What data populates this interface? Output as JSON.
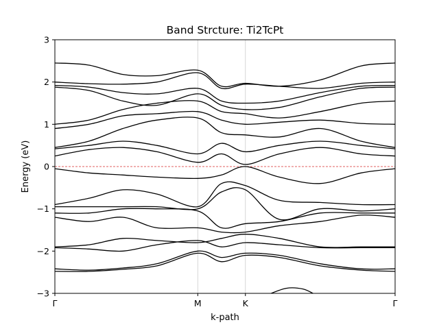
{
  "chart_data": {
    "type": "line",
    "title": "Band Strcture: Ti2TcPt",
    "xlabel": "k-path",
    "ylabel": "Energy (eV)",
    "ylim": [
      -3,
      3
    ],
    "yticks": [
      -3,
      -2,
      -1,
      0,
      1,
      2,
      3
    ],
    "kpoints": [
      {
        "label": "Γ",
        "x": 0.0
      },
      {
        "label": "M",
        "x": 0.42
      },
      {
        "label": "K",
        "x": 0.56
      },
      {
        "label": "Γ",
        "x": 1.0
      }
    ],
    "fermi_level": 0,
    "colors": {
      "bands": "#000000",
      "fermi": "#d62728",
      "kline": "#cccccc"
    },
    "bands": [
      {
        "x": [
          0,
          0.1,
          0.2,
          0.3,
          0.42,
          0.49,
          0.56,
          0.66,
          0.78,
          0.9,
          1.0
        ],
        "y": [
          2.45,
          2.4,
          2.18,
          2.15,
          2.28,
          1.9,
          1.97,
          1.9,
          2.05,
          2.38,
          2.45
        ]
      },
      {
        "x": [
          0,
          0.1,
          0.2,
          0.3,
          0.42,
          0.49,
          0.56,
          0.66,
          0.78,
          0.9,
          1.0
        ],
        "y": [
          2.0,
          1.96,
          1.95,
          2.0,
          2.22,
          1.85,
          1.95,
          1.9,
          1.85,
          1.97,
          2.0
        ]
      },
      {
        "x": [
          0,
          0.1,
          0.2,
          0.3,
          0.42,
          0.49,
          0.56,
          0.66,
          0.78,
          0.9,
          1.0
        ],
        "y": [
          1.92,
          1.88,
          1.75,
          1.72,
          1.85,
          1.55,
          1.5,
          1.55,
          1.75,
          1.9,
          1.92
        ]
      },
      {
        "x": [
          0,
          0.1,
          0.2,
          0.3,
          0.42,
          0.49,
          0.56,
          0.66,
          0.78,
          0.9,
          1.0
        ],
        "y": [
          1.88,
          1.8,
          1.55,
          1.45,
          1.72,
          1.45,
          1.35,
          1.4,
          1.65,
          1.85,
          1.88
        ]
      },
      {
        "x": [
          0,
          0.1,
          0.2,
          0.3,
          0.42,
          0.49,
          0.56,
          0.66,
          0.78,
          0.9,
          1.0
        ],
        "y": [
          1.0,
          1.1,
          1.35,
          1.5,
          1.55,
          1.3,
          1.25,
          1.15,
          1.3,
          1.5,
          1.55
        ]
      },
      {
        "x": [
          0,
          0.1,
          0.2,
          0.3,
          0.42,
          0.49,
          0.56,
          0.66,
          0.78,
          0.9,
          1.0
        ],
        "y": [
          0.9,
          1.0,
          1.2,
          1.25,
          1.3,
          1.1,
          1.0,
          1.05,
          1.1,
          1.02,
          1.0
        ]
      },
      {
        "x": [
          0,
          0.1,
          0.2,
          0.3,
          0.42,
          0.49,
          0.56,
          0.66,
          0.78,
          0.9,
          1.0
        ],
        "y": [
          0.45,
          0.6,
          0.9,
          1.1,
          1.15,
          0.8,
          0.75,
          0.7,
          0.9,
          0.6,
          0.45
        ]
      },
      {
        "x": [
          0,
          0.1,
          0.2,
          0.3,
          0.42,
          0.49,
          0.56,
          0.66,
          0.78,
          0.9,
          1.0
        ],
        "y": [
          0.42,
          0.5,
          0.6,
          0.5,
          0.3,
          0.55,
          0.35,
          0.5,
          0.6,
          0.5,
          0.42
        ]
      },
      {
        "x": [
          0,
          0.1,
          0.2,
          0.3,
          0.42,
          0.49,
          0.56,
          0.66,
          0.78,
          0.9,
          1.0
        ],
        "y": [
          0.25,
          0.4,
          0.45,
          0.35,
          0.1,
          0.3,
          0.05,
          0.3,
          0.45,
          0.3,
          0.25
        ]
      },
      {
        "x": [
          0,
          0.1,
          0.2,
          0.3,
          0.42,
          0.49,
          0.56,
          0.66,
          0.78,
          0.9,
          1.0
        ],
        "y": [
          -0.05,
          -0.15,
          -0.2,
          -0.25,
          -0.28,
          -0.2,
          0.0,
          -0.25,
          -0.4,
          -0.15,
          -0.05
        ]
      },
      {
        "x": [
          0,
          0.1,
          0.2,
          0.3,
          0.42,
          0.49,
          0.56,
          0.66,
          0.78,
          0.9,
          1.0
        ],
        "y": [
          -0.9,
          -0.75,
          -0.55,
          -0.65,
          -0.95,
          -0.4,
          -0.45,
          -0.8,
          -0.85,
          -0.9,
          -0.9
        ]
      },
      {
        "x": [
          0,
          0.1,
          0.2,
          0.3,
          0.42,
          0.49,
          0.56,
          0.66,
          0.78,
          0.9,
          1.0
        ],
        "y": [
          -0.95,
          -0.95,
          -0.95,
          -0.95,
          -1.0,
          -0.6,
          -0.55,
          -1.25,
          -1.0,
          -1.05,
          -1.0
        ]
      },
      {
        "x": [
          0,
          0.1,
          0.2,
          0.3,
          0.42,
          0.49,
          0.56,
          0.66,
          0.78,
          0.9,
          1.0
        ],
        "y": [
          -1.1,
          -1.1,
          -1.0,
          -1.0,
          -1.05,
          -1.45,
          -1.35,
          -1.3,
          -1.1,
          -1.1,
          -1.1
        ]
      },
      {
        "x": [
          0,
          0.1,
          0.2,
          0.3,
          0.42,
          0.49,
          0.56,
          0.66,
          0.78,
          0.9,
          1.0
        ],
        "y": [
          -1.2,
          -1.3,
          -1.2,
          -1.45,
          -1.45,
          -1.55,
          -1.55,
          -1.4,
          -1.3,
          -1.15,
          -1.2
        ]
      },
      {
        "x": [
          0,
          0.1,
          0.2,
          0.3,
          0.42,
          0.49,
          0.56,
          0.66,
          0.78,
          0.9,
          1.0
        ],
        "y": [
          -1.9,
          -1.85,
          -1.7,
          -1.75,
          -1.8,
          -1.7,
          -1.6,
          -1.7,
          -1.9,
          -1.9,
          -1.9
        ]
      },
      {
        "x": [
          0,
          0.1,
          0.2,
          0.3,
          0.42,
          0.49,
          0.56,
          0.66,
          0.78,
          0.9,
          1.0
        ],
        "y": [
          -1.92,
          -1.95,
          -2.0,
          -1.85,
          -1.75,
          -1.9,
          -1.8,
          -1.85,
          -1.92,
          -1.92,
          -1.92
        ]
      },
      {
        "x": [
          0,
          0.1,
          0.2,
          0.3,
          0.42,
          0.49,
          0.56,
          0.66,
          0.78,
          0.9,
          1.0
        ],
        "y": [
          -2.42,
          -2.45,
          -2.4,
          -2.3,
          -2.0,
          -2.15,
          -2.05,
          -2.1,
          -2.3,
          -2.42,
          -2.42
        ]
      },
      {
        "x": [
          0,
          0.1,
          0.2,
          0.3,
          0.42,
          0.49,
          0.56,
          0.66,
          0.78,
          0.9,
          1.0
        ],
        "y": [
          -2.48,
          -2.48,
          -2.43,
          -2.35,
          -2.05,
          -2.25,
          -2.1,
          -2.15,
          -2.35,
          -2.45,
          -2.48
        ]
      },
      {
        "x": [
          0.62,
          0.68,
          0.73,
          0.77
        ],
        "y": [
          -3.05,
          -2.88,
          -2.9,
          -3.05
        ]
      }
    ]
  }
}
